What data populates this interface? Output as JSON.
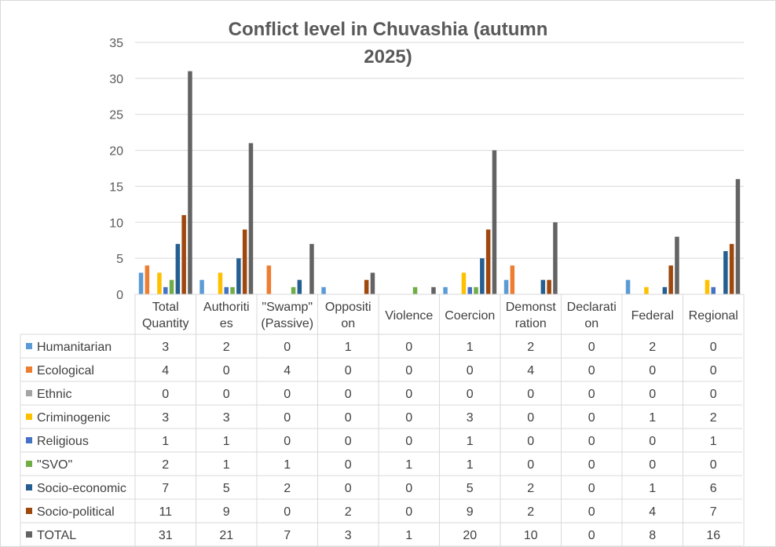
{
  "chart_data": {
    "type": "bar",
    "title": "Conflict level in Chuvashia (autumn 2025)",
    "title_lines": [
      "Conflict level in Chuvashia (autumn",
      "2025)"
    ],
    "ylim": [
      0,
      35
    ],
    "yticks": [
      0,
      5,
      10,
      15,
      20,
      25,
      30,
      35
    ],
    "grid": true,
    "legend": "data-table",
    "categories": [
      "Total Quantity",
      "Authorities",
      "\"Swamp\" (Passive)",
      "Opposition",
      "Violence",
      "Coercion",
      "Demonstration",
      "Declaration",
      "Federal",
      "Regional"
    ],
    "category_label_lines": [
      [
        "Total",
        "Quantity"
      ],
      [
        "Authoriti",
        "es"
      ],
      [
        "\"Swamp\"",
        "(Passive)"
      ],
      [
        "Oppositi",
        "on"
      ],
      [
        "Violence"
      ],
      [
        "Coercion"
      ],
      [
        "Demonst",
        "ration"
      ],
      [
        "Declarati",
        "on"
      ],
      [
        "Federal"
      ],
      [
        "Regional"
      ]
    ],
    "series": [
      {
        "name": "Humanitarian",
        "color": "#5b9bd5",
        "values": [
          3,
          2,
          0,
          1,
          0,
          1,
          2,
          0,
          2,
          0
        ]
      },
      {
        "name": "Ecological",
        "color": "#ed7d31",
        "values": [
          4,
          0,
          4,
          0,
          0,
          0,
          4,
          0,
          0,
          0
        ]
      },
      {
        "name": "Ethnic",
        "color": "#a5a5a5",
        "values": [
          0,
          0,
          0,
          0,
          0,
          0,
          0,
          0,
          0,
          0
        ]
      },
      {
        "name": "Criminogenic",
        "color": "#ffc000",
        "values": [
          3,
          3,
          0,
          0,
          0,
          3,
          0,
          0,
          1,
          2
        ]
      },
      {
        "name": "Religious",
        "color": "#4472c4",
        "values": [
          1,
          1,
          0,
          0,
          0,
          1,
          0,
          0,
          0,
          1
        ]
      },
      {
        "name": "\"SVO\"",
        "color": "#70ad47",
        "values": [
          2,
          1,
          1,
          0,
          1,
          1,
          0,
          0,
          0,
          0
        ]
      },
      {
        "name": "Socio-economic",
        "color": "#255e91",
        "values": [
          7,
          5,
          2,
          0,
          0,
          5,
          2,
          0,
          1,
          6
        ]
      },
      {
        "name": "Socio-political",
        "color": "#9e480e",
        "values": [
          11,
          9,
          0,
          2,
          0,
          9,
          2,
          0,
          4,
          7
        ]
      },
      {
        "name": "TOTAL",
        "color": "#636363",
        "values": [
          31,
          21,
          7,
          3,
          1,
          20,
          10,
          0,
          8,
          16
        ]
      }
    ]
  }
}
